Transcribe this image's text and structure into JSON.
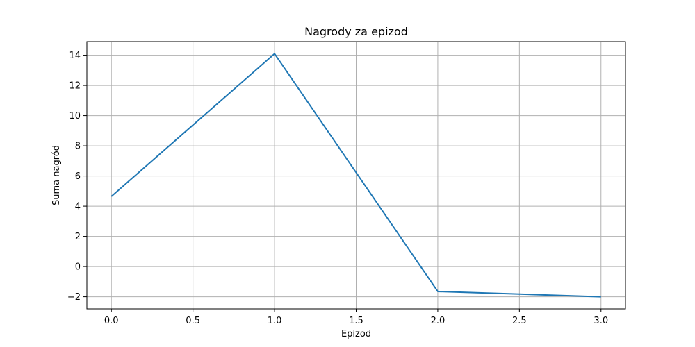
{
  "chart_data": {
    "type": "line",
    "title": "Nagrody za epizod",
    "xlabel": "Epizod",
    "ylabel": "Suma nagród",
    "xlim": [
      -0.15,
      3.15
    ],
    "ylim": [
      -2.8,
      14.9
    ],
    "xticks": [
      0.0,
      0.5,
      1.0,
      1.5,
      2.0,
      2.5,
      3.0
    ],
    "xtick_labels": [
      "0.0",
      "0.5",
      "1.0",
      "1.5",
      "2.0",
      "2.5",
      "3.0"
    ],
    "yticks": [
      -2,
      0,
      2,
      4,
      6,
      8,
      10,
      12,
      14
    ],
    "ytick_labels": [
      "−2",
      "0",
      "2",
      "4",
      "6",
      "8",
      "10",
      "12",
      "14"
    ],
    "grid": true,
    "series": [
      {
        "color": "#1f77b4",
        "x": [
          0,
          1,
          2,
          3
        ],
        "y": [
          4.65,
          14.1,
          -1.65,
          -2.0
        ]
      }
    ]
  }
}
